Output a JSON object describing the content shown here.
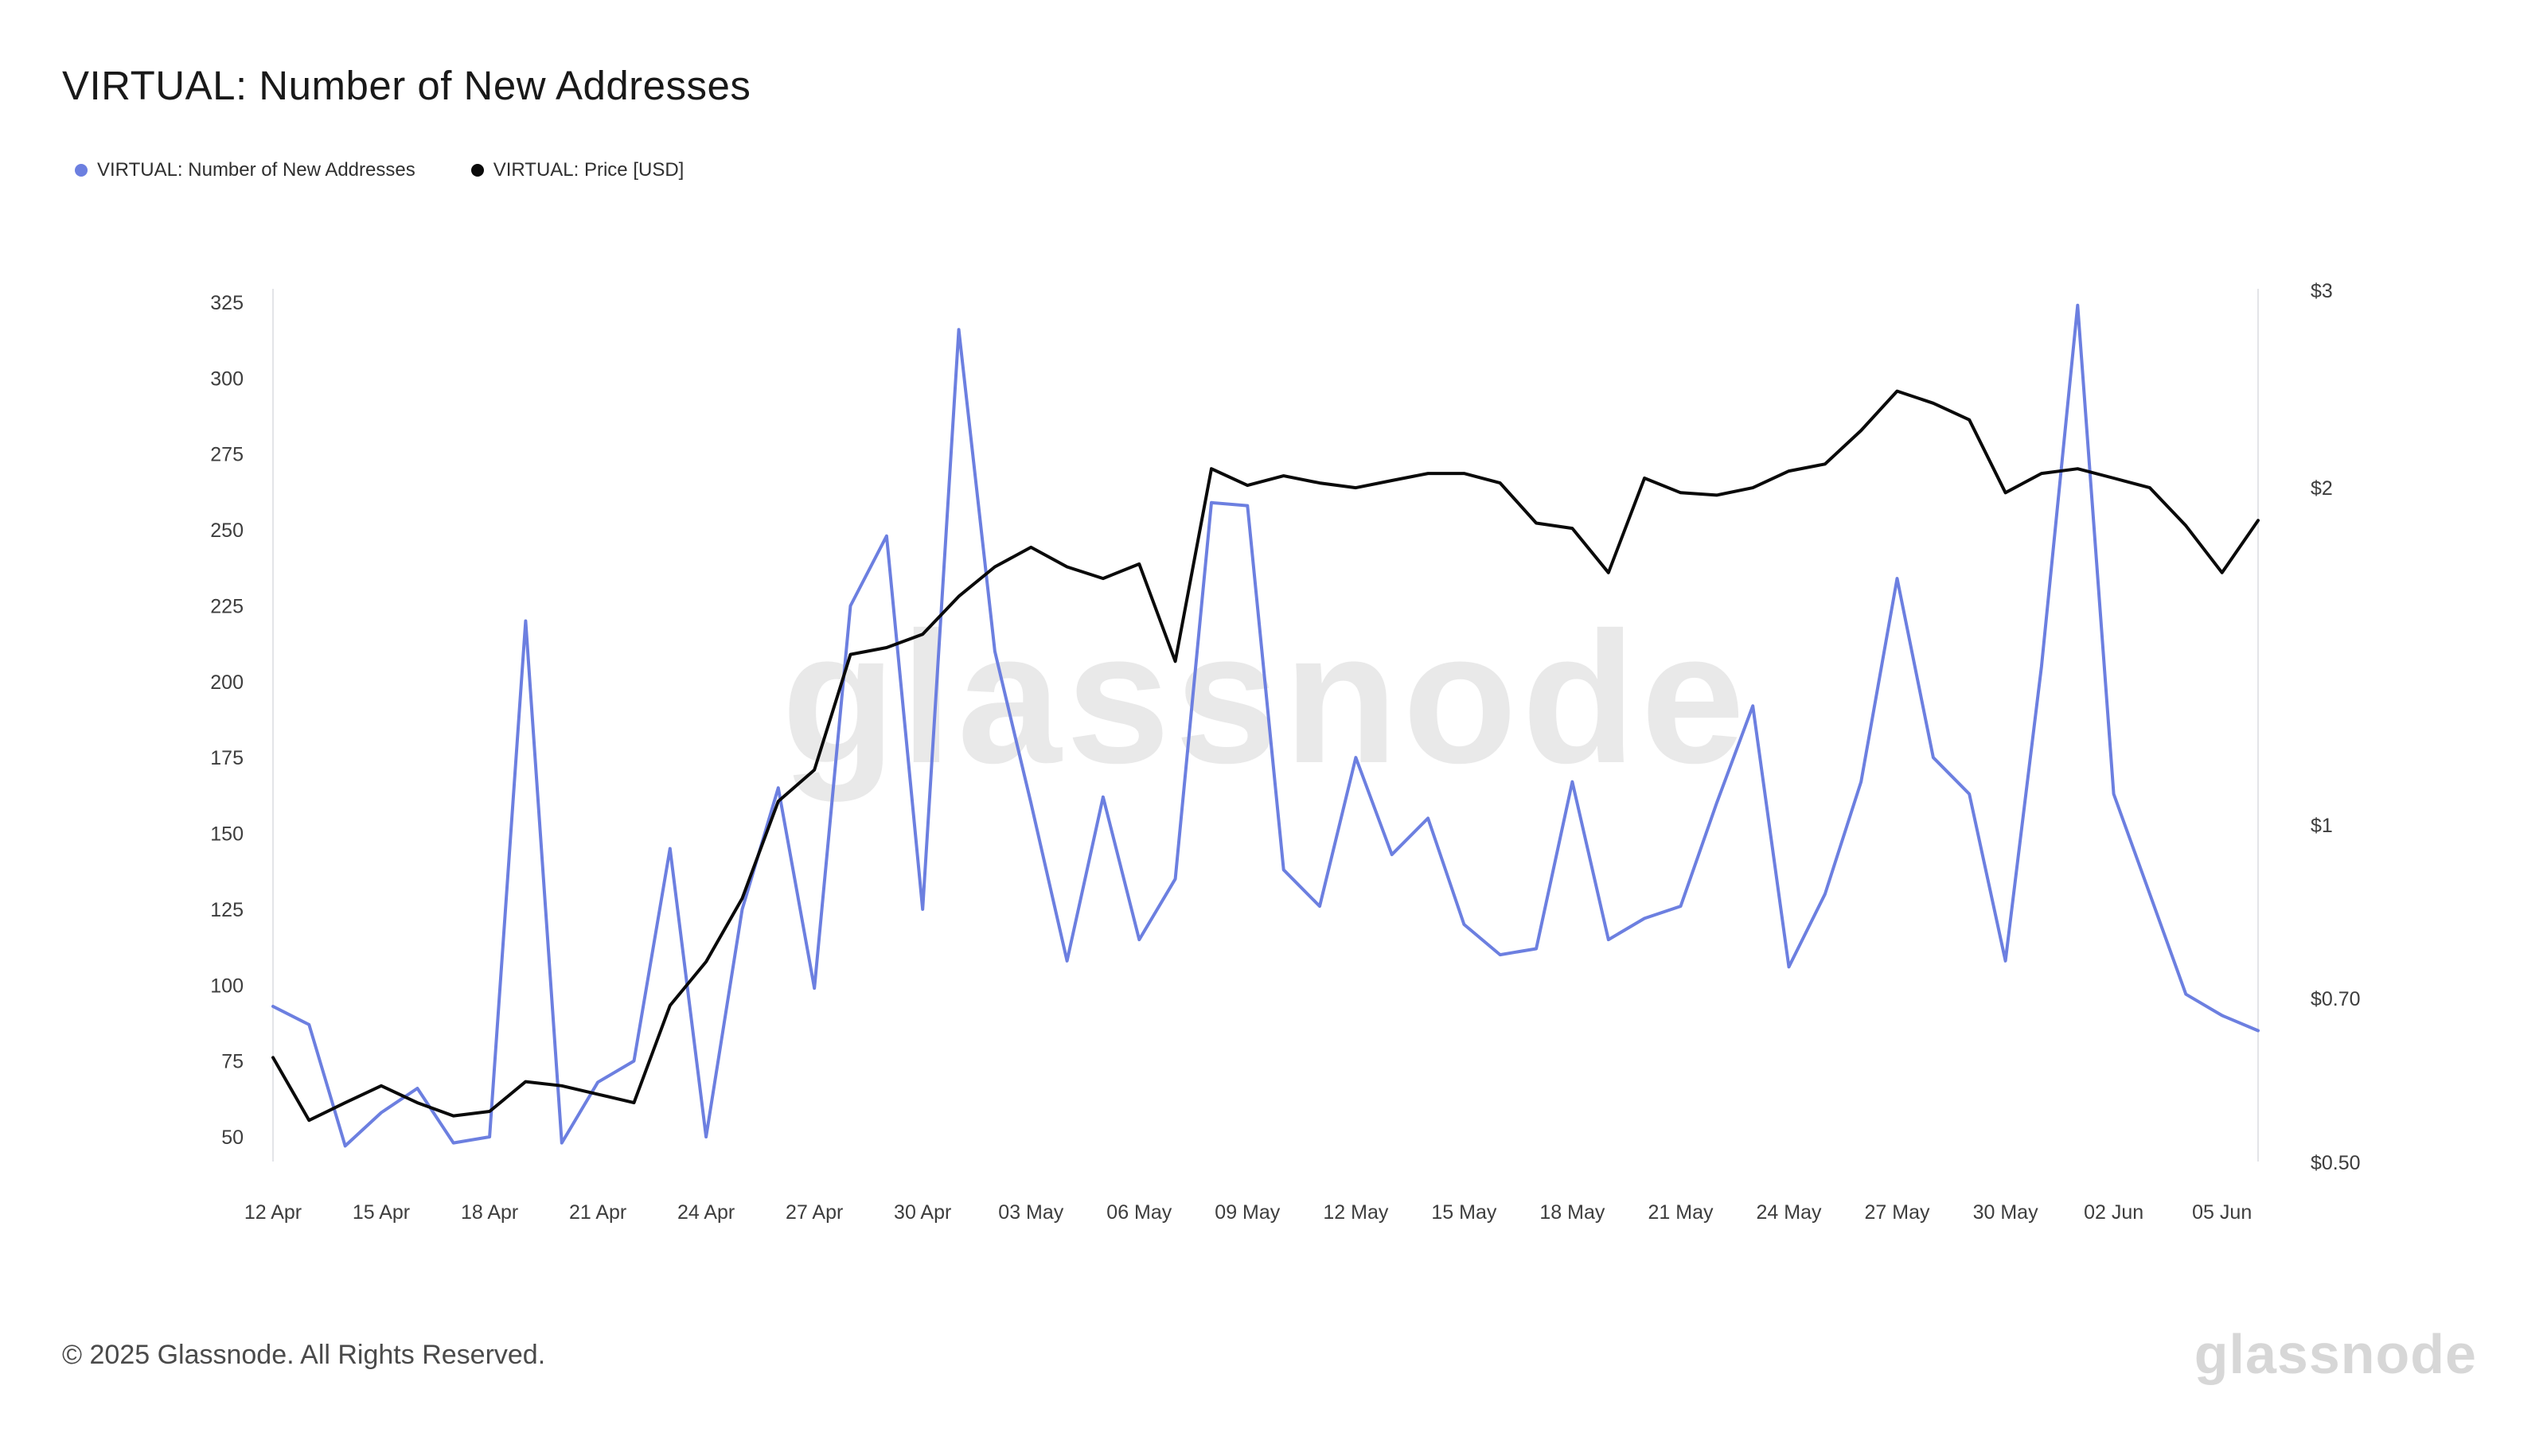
{
  "page": {
    "title": "VIRTUAL: Number of New Addresses",
    "footer": "© 2025 Glassnode. All Rights Reserved.",
    "watermark": "glassnode",
    "brand_logo": "glassnode"
  },
  "legend": [
    {
      "label": "VIRTUAL: Number of New Addresses",
      "color": "#6c7fe0"
    },
    {
      "label": "VIRTUAL: Price [USD]",
      "color": "#0a0a0a"
    }
  ],
  "chart_data": {
    "type": "line",
    "title": "VIRTUAL: Number of New Addresses",
    "x": [
      "12 Apr",
      "13 Apr",
      "14 Apr",
      "15 Apr",
      "16 Apr",
      "17 Apr",
      "18 Apr",
      "19 Apr",
      "20 Apr",
      "21 Apr",
      "22 Apr",
      "23 Apr",
      "24 Apr",
      "25 Apr",
      "26 Apr",
      "27 Apr",
      "28 Apr",
      "29 Apr",
      "30 Apr",
      "01 May",
      "02 May",
      "03 May",
      "04 May",
      "05 May",
      "06 May",
      "07 May",
      "08 May",
      "09 May",
      "10 May",
      "11 May",
      "12 May",
      "13 May",
      "14 May",
      "15 May",
      "16 May",
      "17 May",
      "18 May",
      "19 May",
      "20 May",
      "21 May",
      "22 May",
      "23 May",
      "24 May",
      "25 May",
      "26 May",
      "27 May",
      "28 May",
      "29 May",
      "30 May",
      "31 May",
      "01 Jun",
      "02 Jun",
      "03 Jun",
      "04 Jun",
      "05 Jun",
      "06 Jun"
    ],
    "series": [
      {
        "name": "VIRTUAL: Number of New Addresses",
        "axis": "left",
        "color": "#6c7fe0",
        "values": [
          93,
          87,
          47,
          58,
          66,
          48,
          50,
          220,
          48,
          68,
          75,
          145,
          50,
          125,
          165,
          99,
          225,
          248,
          125,
          316,
          210,
          160,
          108,
          162,
          115,
          135,
          259,
          258,
          138,
          126,
          175,
          143,
          155,
          120,
          110,
          112,
          167,
          115,
          122,
          126,
          160,
          192,
          106,
          130,
          167,
          234,
          175,
          163,
          108,
          205,
          324,
          163,
          130,
          97,
          90,
          85
        ]
      },
      {
        "name": "VIRTUAL: Price [USD]",
        "axis": "right",
        "color": "#0a0a0a",
        "values": [
          0.62,
          0.545,
          0.565,
          0.585,
          0.565,
          0.55,
          0.555,
          0.59,
          0.585,
          0.575,
          0.565,
          0.69,
          0.755,
          0.86,
          1.05,
          1.12,
          1.42,
          1.44,
          1.48,
          1.6,
          1.7,
          1.77,
          1.7,
          1.66,
          1.71,
          1.4,
          2.08,
          2.01,
          2.05,
          2.02,
          2.0,
          2.03,
          2.06,
          2.06,
          2.02,
          1.86,
          1.84,
          1.68,
          2.04,
          1.98,
          1.97,
          2.0,
          2.07,
          2.1,
          2.25,
          2.44,
          2.38,
          2.3,
          1.98,
          2.06,
          2.08,
          2.04,
          2.0,
          1.85,
          1.68,
          1.87
        ]
      }
    ],
    "left_axis": {
      "ticks": [
        325,
        300,
        275,
        250,
        225,
        200,
        175,
        150,
        125,
        100,
        75,
        50
      ],
      "scale": "linear"
    },
    "right_axis": {
      "ticks": [
        {
          "label": "$3",
          "value": 3
        },
        {
          "label": "$2",
          "value": 2
        },
        {
          "label": "$1",
          "value": 1
        },
        {
          "label": "$0.70",
          "value": 0.7
        },
        {
          "label": "$0.50",
          "value": 0.5
        }
      ],
      "scale": "log"
    },
    "x_ticks": [
      {
        "label": "12 Apr",
        "index": 0
      },
      {
        "label": "15 Apr",
        "index": 3
      },
      {
        "label": "18 Apr",
        "index": 6
      },
      {
        "label": "21 Apr",
        "index": 9
      },
      {
        "label": "24 Apr",
        "index": 12
      },
      {
        "label": "27 Apr",
        "index": 15
      },
      {
        "label": "30 Apr",
        "index": 18
      },
      {
        "label": "03 May",
        "index": 21
      },
      {
        "label": "06 May",
        "index": 24
      },
      {
        "label": "09 May",
        "index": 27
      },
      {
        "label": "12 May",
        "index": 30
      },
      {
        "label": "15 May",
        "index": 33
      },
      {
        "label": "18 May",
        "index": 36
      },
      {
        "label": "21 May",
        "index": 39
      },
      {
        "label": "24 May",
        "index": 42
      },
      {
        "label": "27 May",
        "index": 45
      },
      {
        "label": "30 May",
        "index": 48
      },
      {
        "label": "02 Jun",
        "index": 51
      },
      {
        "label": "05 Jun",
        "index": 54
      }
    ],
    "grid": "off",
    "legend_position": "top-left"
  }
}
